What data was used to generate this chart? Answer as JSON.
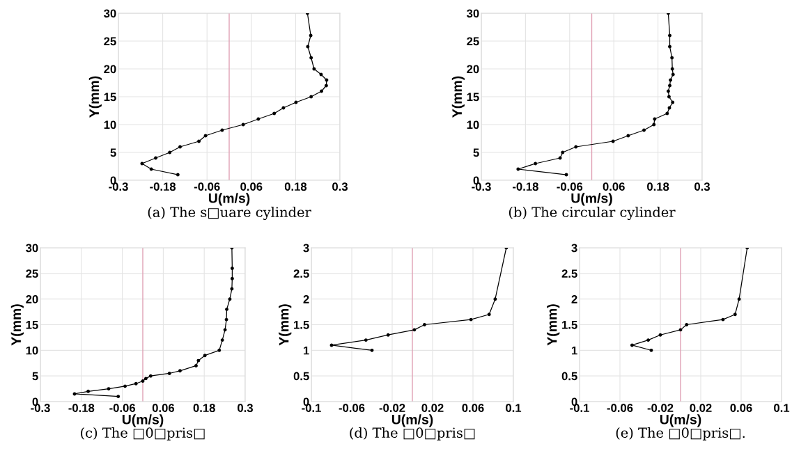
{
  "chart_data": [
    {
      "type": "line",
      "title": "(a) The s□uare cylinder",
      "xlabel": "U(m/s)",
      "ylabel": "Y(mm)",
      "marker": "circle",
      "line_style": "solid",
      "grid": true,
      "xlim": [
        -0.3,
        0.3
      ],
      "xticks": [
        -0.3,
        -0.18,
        -0.06,
        0.06,
        0.18,
        0.3
      ],
      "ylim": [
        0,
        30
      ],
      "yticks": [
        0,
        5,
        10,
        15,
        20,
        25,
        30
      ],
      "ref_lines": [
        {
          "axis": "x",
          "value": 0,
          "color": "#e0a0b4"
        }
      ],
      "series": [
        {
          "color": "#000000",
          "x": [
            0.212,
            0.221,
            0.213,
            0.222,
            0.23,
            0.249,
            0.264,
            0.263,
            0.25,
            0.222,
            0.181,
            0.147,
            0.122,
            0.079,
            0.038,
            -0.019,
            -0.064,
            -0.082,
            -0.133,
            -0.161,
            -0.199,
            -0.236,
            -0.211,
            -0.139
          ],
          "values": [
            30,
            26,
            24,
            22,
            20,
            19,
            18,
            17,
            16,
            15,
            14,
            13,
            12,
            11,
            10,
            9,
            8,
            7,
            6,
            5,
            4,
            3,
            2,
            1
          ]
        }
      ]
    },
    {
      "type": "line",
      "title": "(b) The circular cylinder",
      "xlabel": "U(m/s)",
      "ylabel": "Y(mm)",
      "marker": "circle",
      "line_style": "solid",
      "grid": true,
      "xlim": [
        -0.3,
        0.3
      ],
      "xticks": [
        -0.3,
        -0.18,
        -0.06,
        0.06,
        0.18,
        0.3
      ],
      "ylim": [
        0,
        30
      ],
      "yticks": [
        0,
        5,
        10,
        15,
        20,
        25,
        30
      ],
      "ref_lines": [
        {
          "axis": "x",
          "value": 0,
          "color": "#e0a0b4"
        }
      ],
      "series": [
        {
          "color": "#000000",
          "x": [
            0.208,
            0.212,
            0.212,
            0.218,
            0.219,
            0.221,
            0.214,
            0.212,
            0.208,
            0.21,
            0.22,
            0.211,
            0.205,
            0.171,
            0.169,
            0.142,
            0.099,
            0.058,
            -0.043,
            -0.079,
            -0.086,
            -0.153,
            -0.2,
            -0.069
          ],
          "values": [
            30,
            26,
            24,
            22,
            20,
            19,
            18,
            17,
            16,
            15,
            14,
            13,
            12,
            11,
            10,
            9,
            8,
            7,
            6,
            5,
            4,
            3,
            2,
            1
          ]
        }
      ]
    },
    {
      "type": "line",
      "title": "(c) The □0□pris□",
      "xlabel": "U(m/s)",
      "ylabel": "Y(mm)",
      "marker": "circle",
      "line_style": "solid",
      "grid": true,
      "xlim": [
        -0.3,
        0.3
      ],
      "xticks": [
        -0.3,
        -0.18,
        -0.06,
        0.06,
        0.18,
        0.3
      ],
      "ylim": [
        0,
        30
      ],
      "yticks": [
        0,
        5,
        10,
        15,
        20,
        25,
        30
      ],
      "ref_lines": [
        {
          "axis": "x",
          "value": 0,
          "color": "#e0a0b4"
        }
      ],
      "series": [
        {
          "color": "#000000",
          "x": [
            0.261,
            0.262,
            0.262,
            0.261,
            0.255,
            0.246,
            0.245,
            0.241,
            0.233,
            0.224,
            0.182,
            0.163,
            0.156,
            0.109,
            0.078,
            0.023,
            0.009,
            0.0,
            -0.02,
            -0.052,
            -0.1,
            -0.16,
            -0.2,
            -0.072
          ],
          "values": [
            30,
            26,
            24,
            22,
            20,
            18,
            16,
            14,
            12,
            10,
            9,
            8,
            7,
            6,
            5.5,
            5,
            4.5,
            4,
            3.5,
            3,
            2.5,
            2,
            1.5,
            1
          ]
        }
      ]
    },
    {
      "type": "line",
      "title": "(d) The □0□pris□",
      "xlabel": "U(m/s)",
      "ylabel": "Y(mm)",
      "marker": "circle",
      "line_style": "solid",
      "grid": true,
      "xlim": [
        -0.1,
        0.1
      ],
      "xticks": [
        -0.1,
        -0.06,
        -0.02,
        0.02,
        0.06,
        0.1
      ],
      "ylim": [
        0,
        3
      ],
      "yticks": [
        0,
        0.5,
        1,
        1.5,
        2,
        2.5,
        3
      ],
      "ref_lines": [
        {
          "axis": "x",
          "value": 0,
          "color": "#e0a0b4"
        }
      ],
      "series": [
        {
          "color": "#000000",
          "x": [
            0.093,
            0.082,
            0.076,
            0.058,
            0.012,
            0.002,
            -0.024,
            -0.046,
            -0.08,
            -0.04
          ],
          "values": [
            3,
            2,
            1.7,
            1.6,
            1.5,
            1.4,
            1.3,
            1.2,
            1.1,
            1.0
          ]
        }
      ]
    },
    {
      "type": "line",
      "title": "(e) The □0□pris□.",
      "xlabel": "U(m/s)",
      "ylabel": "Y(mm)",
      "marker": "circle",
      "line_style": "solid",
      "grid": true,
      "xlim": [
        -0.1,
        0.1
      ],
      "xticks": [
        -0.1,
        -0.06,
        -0.02,
        0.02,
        0.06,
        0.1
      ],
      "ylim": [
        0,
        3
      ],
      "yticks": [
        0,
        0.5,
        1,
        1.5,
        2,
        2.5,
        3
      ],
      "ref_lines": [
        {
          "axis": "x",
          "value": 0,
          "color": "#e0a0b4"
        }
      ],
      "series": [
        {
          "color": "#000000",
          "x": [
            0.066,
            0.058,
            0.054,
            0.042,
            0.006,
            0.0,
            -0.02,
            -0.032,
            -0.048,
            -0.029
          ],
          "values": [
            3,
            2,
            1.7,
            1.6,
            1.5,
            1.4,
            1.3,
            1.2,
            1.1,
            1.0
          ]
        }
      ]
    }
  ]
}
